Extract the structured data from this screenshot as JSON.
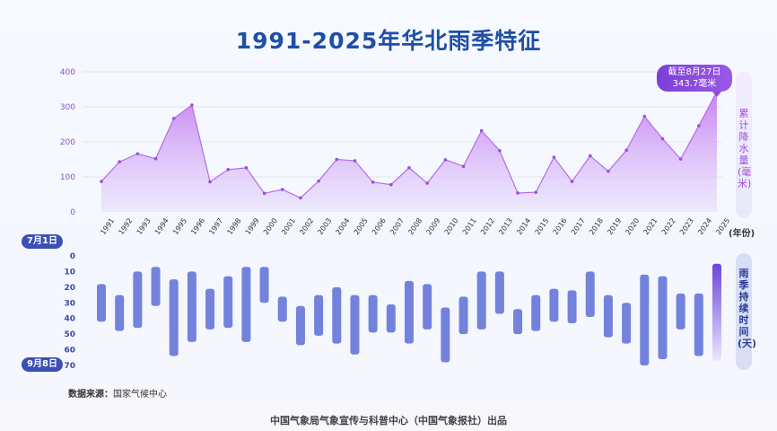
{
  "title": "1991-2025年华北雨季特征",
  "callout": {
    "line1": "截至8月27日",
    "line2": "343.7毫米"
  },
  "top_axis_label": "累计降水量(毫米)",
  "bottom_axis_label": "雨季持续时间(天)",
  "year_unit_label": "(年份)",
  "start_date_label": "7月1日",
  "end_date_label": "9月8日",
  "source": {
    "key": "数据来源：",
    "value": "国家气候中心"
  },
  "footer": "中国气象局气象宣传与科普中心（中国气象报社）出品",
  "colors": {
    "title": "#1f4fa6",
    "area": "#c98af0",
    "line": "#b46de6",
    "bar": "#7382dc",
    "bar_2025": "#7b4fe0",
    "pill": "#3b4fb5"
  },
  "chart_data": [
    {
      "type": "area",
      "ylabel": "累计降水量(毫米)",
      "ylim": [
        0,
        400
      ],
      "yticks": [
        "0",
        "100",
        "200",
        "300",
        "400"
      ],
      "categories": [
        "1991",
        "1992",
        "1993",
        "1994",
        "1995",
        "1996",
        "1997",
        "1998",
        "1999",
        "2000",
        "2001",
        "2002",
        "2003",
        "2004",
        "2005",
        "2006",
        "2007",
        "2008",
        "2009",
        "2010",
        "2011",
        "2012",
        "2013",
        "2014",
        "2015",
        "2016",
        "2017",
        "2018",
        "2019",
        "2020",
        "2021",
        "2022",
        "2023",
        "2024",
        "2025"
      ],
      "values": [
        87,
        143,
        166,
        152,
        267,
        305,
        86,
        121,
        126,
        53,
        64,
        40,
        88,
        150,
        146,
        85,
        78,
        126,
        82,
        149,
        130,
        232,
        175,
        54,
        56,
        156,
        87,
        160,
        116,
        176,
        273,
        209,
        151,
        246,
        343.7
      ],
      "grid": true
    },
    {
      "type": "bar",
      "ylabel": "雨季持续时间(天)",
      "ylim": [
        0,
        70
      ],
      "yticks": [
        "0",
        "10",
        "20",
        "30",
        "40",
        "50",
        "60",
        "70"
      ],
      "categories": [
        "1991",
        "1992",
        "1993",
        "1994",
        "1995",
        "1996",
        "1997",
        "1998",
        "1999",
        "2000",
        "2001",
        "2002",
        "2003",
        "2004",
        "2005",
        "2006",
        "2007",
        "2008",
        "2009",
        "2010",
        "2011",
        "2012",
        "2013",
        "2014",
        "2015",
        "2016",
        "2017",
        "2018",
        "2019",
        "2020",
        "2021",
        "2022",
        "2023",
        "2024",
        "2025"
      ],
      "ranges": [
        [
          18,
          42
        ],
        [
          25,
          48
        ],
        [
          10,
          46
        ],
        [
          7,
          32
        ],
        [
          15,
          64
        ],
        [
          10,
          55
        ],
        [
          21,
          47
        ],
        [
          13,
          46
        ],
        [
          7,
          55
        ],
        [
          7,
          30
        ],
        [
          26,
          42
        ],
        [
          32,
          57
        ],
        [
          25,
          51
        ],
        [
          20,
          56
        ],
        [
          25,
          63
        ],
        [
          25,
          49
        ],
        [
          31,
          49
        ],
        [
          16,
          56
        ],
        [
          18,
          47
        ],
        [
          33,
          68
        ],
        [
          26,
          50
        ],
        [
          10,
          47
        ],
        [
          10,
          37
        ],
        [
          34,
          50
        ],
        [
          25,
          48
        ],
        [
          21,
          42
        ],
        [
          22,
          43
        ],
        [
          10,
          39
        ],
        [
          25,
          52
        ],
        [
          30,
          56
        ],
        [
          12,
          70
        ],
        [
          13,
          66
        ],
        [
          24,
          47
        ],
        [
          24,
          64
        ],
        [
          5,
          67
        ]
      ]
    }
  ]
}
